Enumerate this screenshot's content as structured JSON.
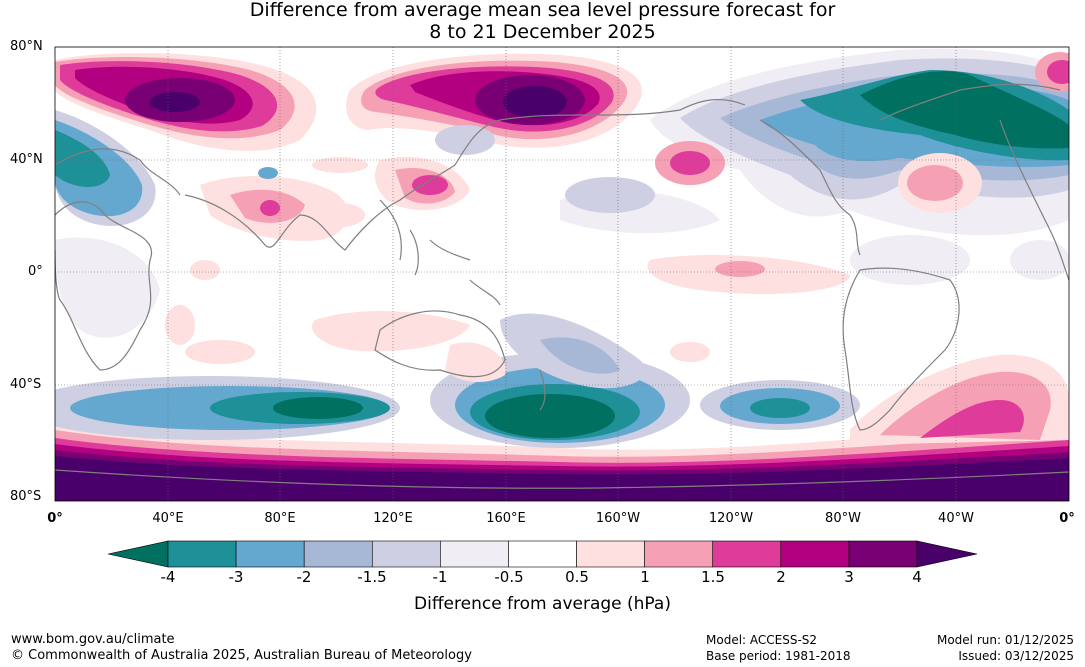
{
  "title": {
    "line1": "Difference from average mean sea level pressure forecast for",
    "line2": "8 to 21 December 2025"
  },
  "map": {
    "latitude_labels": [
      "80°N",
      "40°N",
      "0°",
      "40°S",
      "80°S"
    ],
    "longitude_labels": [
      "0°",
      "40°E",
      "80°E",
      "120°E",
      "160°E",
      "160°W",
      "120°W",
      "80°W",
      "40°W",
      "0°"
    ],
    "land_colour": "#ffffff",
    "coastline_colour": "#7f7f7f"
  },
  "legend": {
    "title": "Difference from average (hPa)",
    "tick_labels": [
      "-4",
      "-3",
      "-2",
      "-1.5",
      "-1",
      "-0.5",
      "0.5",
      "1",
      "1.5",
      "2",
      "3",
      "4"
    ],
    "colors": [
      "#007060",
      "#1e9098",
      "#65a8cf",
      "#a7b8d6",
      "#cfcfe4",
      "#f0edf4",
      "#ffffff",
      "#fde0df",
      "#f6a0b6",
      "#de3b9a",
      "#b30081",
      "#790074",
      "#4a006a"
    ]
  },
  "footer": {
    "website": "www.bom.gov.au/climate",
    "copyright": "© Commonwealth of Australia 2025, Australian Bureau of Meteorology",
    "model": "Model: ACCESS-S2",
    "base_period": "Base period: 1981-2018",
    "model_run": "Model run: 01/12/2025",
    "issued": "Issued: 03/12/2025"
  }
}
